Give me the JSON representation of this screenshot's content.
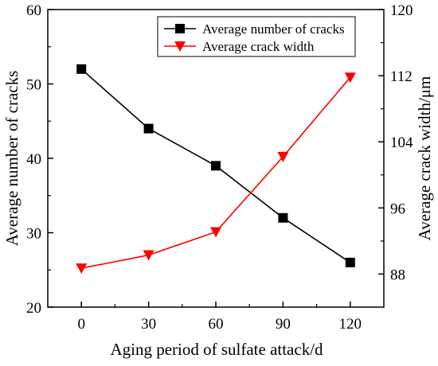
{
  "chart_data": {
    "type": "line",
    "xlabel": "Aging period of sulfate attack/d",
    "ylabel_left": "Average number of cracks",
    "ylabel_right": "Average crack width/μm",
    "x": [
      0,
      30,
      60,
      90,
      120
    ],
    "x_ticks": [
      "0",
      "30",
      "60",
      "90",
      "120"
    ],
    "xlim": [
      -15,
      135
    ],
    "ylim_left": [
      20,
      60
    ],
    "ylim_right": [
      84,
      120
    ],
    "y_ticks_left": [
      "20",
      "30",
      "40",
      "50",
      "60"
    ],
    "y_ticks_right": [
      "88",
      "96",
      "104",
      "112",
      "120"
    ],
    "grid": false,
    "legend_position": "top-right",
    "series": [
      {
        "name": "Average number of cracks",
        "axis": "left",
        "marker": "square",
        "color": "#000000",
        "values": [
          52,
          44,
          39,
          32,
          26
        ]
      },
      {
        "name": "Average crack width",
        "axis": "right",
        "marker": "triangle-down",
        "color": "#ff0000",
        "values": [
          88.7,
          90.3,
          93.1,
          102.2,
          111.8
        ]
      }
    ]
  }
}
